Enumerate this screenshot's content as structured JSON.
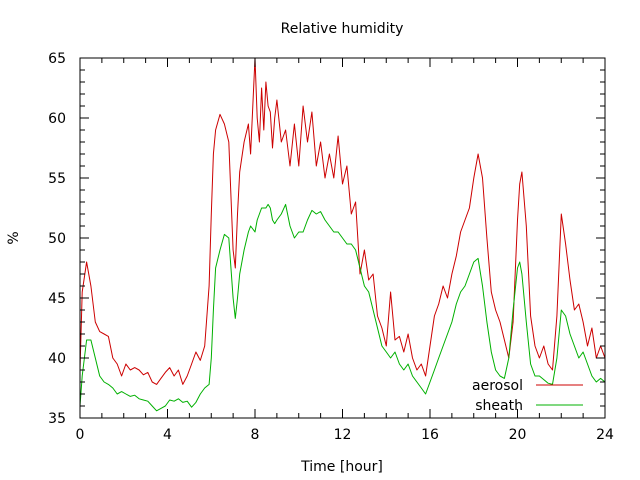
{
  "chart_data": {
    "type": "line",
    "title": "Relative humidity",
    "xlabel": "Time [hour]",
    "ylabel": "%",
    "xlim": [
      0,
      24
    ],
    "ylim": [
      35,
      65
    ],
    "xticks": [
      0,
      4,
      8,
      12,
      16,
      20,
      24
    ],
    "yticks": [
      35,
      40,
      45,
      50,
      55,
      60,
      65
    ],
    "grid": false,
    "legend_position": "bottom-right",
    "series": [
      {
        "name": "aerosol",
        "color": "#cc0000",
        "x": [
          0,
          0.1,
          0.3,
          0.5,
          0.7,
          0.9,
          1.1,
          1.3,
          1.5,
          1.7,
          1.9,
          2.1,
          2.3,
          2.5,
          2.7,
          2.9,
          3.1,
          3.3,
          3.5,
          3.7,
          3.9,
          4.1,
          4.3,
          4.5,
          4.7,
          4.9,
          5.1,
          5.3,
          5.5,
          5.7,
          5.9,
          6.0,
          6.1,
          6.2,
          6.4,
          6.6,
          6.8,
          7.0,
          7.1,
          7.2,
          7.3,
          7.5,
          7.7,
          7.8,
          8.0,
          8.1,
          8.2,
          8.3,
          8.4,
          8.5,
          8.6,
          8.7,
          8.8,
          8.9,
          9.0,
          9.2,
          9.4,
          9.6,
          9.8,
          10.0,
          10.2,
          10.4,
          10.6,
          10.8,
          11.0,
          11.2,
          11.4,
          11.6,
          11.8,
          12.0,
          12.2,
          12.4,
          12.6,
          12.8,
          13.0,
          13.2,
          13.4,
          13.6,
          13.8,
          14.0,
          14.2,
          14.4,
          14.6,
          14.8,
          15.0,
          15.2,
          15.4,
          15.6,
          15.8,
          16.0,
          16.2,
          16.4,
          16.6,
          16.8,
          17.0,
          17.2,
          17.4,
          17.6,
          17.8,
          18.0,
          18.2,
          18.4,
          18.6,
          18.8,
          19.0,
          19.2,
          19.4,
          19.6,
          19.8,
          20.0,
          20.1,
          20.2,
          20.4,
          20.6,
          20.8,
          21.0,
          21.2,
          21.4,
          21.6,
          21.8,
          22.0,
          22.2,
          22.4,
          22.6,
          22.8,
          23.0,
          23.2,
          23.4,
          23.6,
          23.8,
          24.0
        ],
        "y": [
          39.0,
          45.5,
          48.0,
          46.0,
          43.0,
          42.2,
          42.0,
          41.8,
          40.0,
          39.5,
          38.5,
          39.5,
          39.0,
          39.2,
          39.0,
          38.6,
          38.8,
          38.0,
          37.8,
          38.3,
          38.8,
          39.2,
          38.5,
          39.0,
          37.8,
          38.5,
          39.5,
          40.5,
          39.8,
          41.0,
          46.0,
          52.0,
          57.0,
          59.0,
          60.3,
          59.5,
          58.0,
          49.0,
          47.5,
          52.0,
          55.5,
          58.0,
          59.5,
          57.0,
          65.0,
          60.0,
          58.0,
          62.5,
          59.0,
          63.0,
          61.0,
          60.5,
          57.5,
          60.0,
          61.5,
          58.0,
          59.0,
          56.0,
          59.5,
          56.0,
          61.0,
          58.0,
          60.5,
          56.0,
          58.0,
          55.0,
          57.0,
          55.0,
          58.5,
          54.5,
          56.0,
          52.0,
          53.0,
          47.0,
          49.0,
          46.5,
          47.0,
          43.5,
          42.5,
          41.0,
          45.5,
          41.5,
          41.8,
          40.5,
          42.0,
          40.0,
          39.0,
          39.5,
          38.5,
          41.0,
          43.5,
          44.5,
          46.0,
          45.0,
          47.0,
          48.5,
          50.5,
          51.5,
          52.5,
          55.0,
          57.0,
          55.0,
          50.0,
          45.5,
          44.0,
          43.0,
          41.5,
          40.0,
          43.0,
          51.5,
          54.5,
          55.5,
          51.0,
          43.5,
          41.0,
          40.0,
          41.0,
          39.5,
          39.0,
          43.5,
          52.0,
          49.5,
          46.5,
          44.0,
          44.5,
          43.0,
          41.0,
          42.5,
          40.0,
          41.0,
          40.0
        ]
      },
      {
        "name": "sheath",
        "color": "#00b000",
        "x": [
          0,
          0.1,
          0.3,
          0.5,
          0.7,
          0.9,
          1.1,
          1.3,
          1.5,
          1.7,
          1.9,
          2.1,
          2.3,
          2.5,
          2.7,
          2.9,
          3.1,
          3.3,
          3.5,
          3.7,
          3.9,
          4.1,
          4.3,
          4.5,
          4.7,
          4.9,
          5.1,
          5.3,
          5.5,
          5.7,
          5.9,
          6.0,
          6.1,
          6.2,
          6.4,
          6.6,
          6.8,
          7.0,
          7.1,
          7.2,
          7.3,
          7.5,
          7.7,
          7.8,
          8.0,
          8.1,
          8.2,
          8.3,
          8.4,
          8.5,
          8.6,
          8.7,
          8.8,
          8.9,
          9.0,
          9.2,
          9.4,
          9.6,
          9.8,
          10.0,
          10.2,
          10.4,
          10.6,
          10.8,
          11.0,
          11.2,
          11.4,
          11.6,
          11.8,
          12.0,
          12.2,
          12.4,
          12.6,
          12.8,
          13.0,
          13.2,
          13.4,
          13.6,
          13.8,
          14.0,
          14.2,
          14.4,
          14.6,
          14.8,
          15.0,
          15.2,
          15.4,
          15.6,
          15.8,
          16.0,
          16.2,
          16.4,
          16.6,
          16.8,
          17.0,
          17.2,
          17.4,
          17.6,
          17.8,
          18.0,
          18.2,
          18.4,
          18.6,
          18.8,
          19.0,
          19.2,
          19.4,
          19.6,
          19.8,
          20.0,
          20.1,
          20.2,
          20.4,
          20.6,
          20.8,
          21.0,
          21.2,
          21.4,
          21.6,
          21.8,
          22.0,
          22.2,
          22.4,
          22.6,
          22.8,
          23.0,
          23.2,
          23.4,
          23.6,
          23.8,
          24.0
        ],
        "y": [
          36.0,
          38.5,
          41.5,
          41.5,
          40.0,
          38.5,
          38.0,
          37.8,
          37.5,
          37.0,
          37.2,
          37.0,
          36.8,
          36.9,
          36.6,
          36.5,
          36.4,
          36.0,
          35.6,
          35.8,
          36.0,
          36.5,
          36.4,
          36.6,
          36.3,
          36.4,
          35.9,
          36.3,
          37.0,
          37.5,
          37.8,
          40.0,
          44.0,
          47.5,
          49.0,
          50.3,
          50.0,
          45.0,
          43.3,
          45.0,
          47.0,
          49.0,
          50.5,
          51.0,
          50.5,
          51.5,
          52.0,
          52.5,
          52.5,
          52.5,
          52.8,
          52.5,
          51.5,
          51.2,
          51.5,
          52.0,
          52.8,
          51.0,
          50.0,
          50.5,
          50.5,
          51.5,
          52.3,
          52.0,
          52.2,
          51.5,
          51.0,
          50.5,
          50.5,
          50.0,
          49.5,
          49.5,
          49.0,
          47.5,
          46.0,
          45.5,
          44.0,
          42.5,
          41.0,
          40.5,
          40.0,
          40.5,
          39.5,
          39.0,
          39.5,
          38.5,
          38.0,
          37.5,
          37.0,
          38.0,
          39.0,
          40.0,
          41.0,
          42.0,
          43.0,
          44.5,
          45.5,
          46.0,
          47.0,
          48.0,
          48.3,
          46.0,
          43.0,
          40.5,
          39.0,
          38.5,
          38.3,
          40.0,
          44.0,
          47.5,
          48.0,
          47.0,
          43.0,
          39.5,
          38.5,
          38.5,
          38.2,
          37.9,
          37.8,
          40.0,
          44.0,
          43.5,
          42.0,
          41.0,
          40.0,
          40.5,
          39.5,
          38.5,
          38.0,
          38.3,
          38.0
        ]
      }
    ]
  }
}
